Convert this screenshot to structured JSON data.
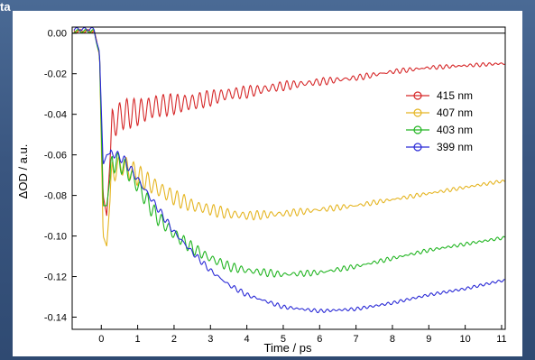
{
  "corner_text": "ta",
  "chart_data": {
    "type": "line",
    "title": "",
    "xlabel": "Time / ps",
    "ylabel": "ΔOD / a.u.",
    "xlim": [
      -0.8,
      11.1
    ],
    "ylim": [
      -0.146,
      0.003
    ],
    "xticks": [
      0,
      1,
      2,
      3,
      4,
      5,
      6,
      7,
      8,
      9,
      10,
      11
    ],
    "yticks": [
      0.0,
      -0.02,
      -0.04,
      -0.06,
      -0.08,
      -0.1,
      -0.12,
      -0.14
    ],
    "ytick_labels": [
      "0.00",
      "-0.02",
      "-0.04",
      "-0.06",
      "-0.08",
      "-0.10",
      "-0.12",
      "-0.14"
    ],
    "grid": false,
    "zero_line": true,
    "legend_position": "right",
    "series": [
      {
        "name": "415 nm",
        "color": "#d62728",
        "x": [
          -0.7,
          -0.2,
          -0.05,
          0.05,
          0.15,
          0.3,
          0.6,
          1,
          1.5,
          2,
          2.5,
          3,
          3.5,
          4,
          5,
          6,
          7,
          8,
          9,
          10,
          11
        ],
        "y": [
          0.001,
          0.001,
          -0.01,
          -0.08,
          -0.09,
          -0.045,
          -0.04,
          -0.039,
          -0.036,
          -0.035,
          -0.034,
          -0.032,
          -0.03,
          -0.029,
          -0.026,
          -0.024,
          -0.022,
          -0.019,
          -0.017,
          -0.016,
          -0.015
        ],
        "osc_amplitude": 0.008
      },
      {
        "name": "407 nm",
        "color": "#e5b522",
        "x": [
          -0.7,
          -0.2,
          -0.05,
          0.05,
          0.15,
          0.3,
          0.6,
          1,
          1.5,
          2,
          2.5,
          3,
          3.5,
          4,
          5,
          6,
          7,
          8,
          9,
          10,
          11
        ],
        "y": [
          0.001,
          0.001,
          -0.01,
          -0.1,
          -0.105,
          -0.068,
          -0.065,
          -0.07,
          -0.076,
          -0.081,
          -0.085,
          -0.087,
          -0.089,
          -0.09,
          -0.089,
          -0.087,
          -0.085,
          -0.082,
          -0.079,
          -0.076,
          -0.073
        ],
        "osc_amplitude": 0.006
      },
      {
        "name": "403 nm",
        "color": "#22b522",
        "x": [
          -0.7,
          -0.2,
          -0.05,
          0.05,
          0.15,
          0.3,
          0.6,
          1,
          1.5,
          2,
          2.5,
          3,
          3.5,
          4,
          5,
          6,
          7,
          8,
          9,
          10,
          11
        ],
        "y": [
          0.001,
          0.001,
          -0.01,
          -0.085,
          -0.085,
          -0.063,
          -0.065,
          -0.075,
          -0.09,
          -0.099,
          -0.106,
          -0.111,
          -0.115,
          -0.117,
          -0.119,
          -0.118,
          -0.115,
          -0.111,
          -0.107,
          -0.104,
          -0.101
        ],
        "osc_amplitude": 0.005
      },
      {
        "name": "399 nm",
        "color": "#2a2ad6",
        "x": [
          -0.7,
          -0.2,
          -0.05,
          0.05,
          0.15,
          0.3,
          0.6,
          1,
          1.5,
          2,
          2.5,
          3,
          3.5,
          4,
          5,
          6,
          7,
          8,
          9,
          10,
          11
        ],
        "y": [
          0.002,
          0.002,
          -0.01,
          -0.065,
          -0.06,
          -0.059,
          -0.062,
          -0.072,
          -0.085,
          -0.098,
          -0.108,
          -0.117,
          -0.124,
          -0.129,
          -0.135,
          -0.137,
          -0.136,
          -0.133,
          -0.129,
          -0.126,
          -0.122
        ],
        "osc_amplitude": 0.002
      }
    ]
  }
}
